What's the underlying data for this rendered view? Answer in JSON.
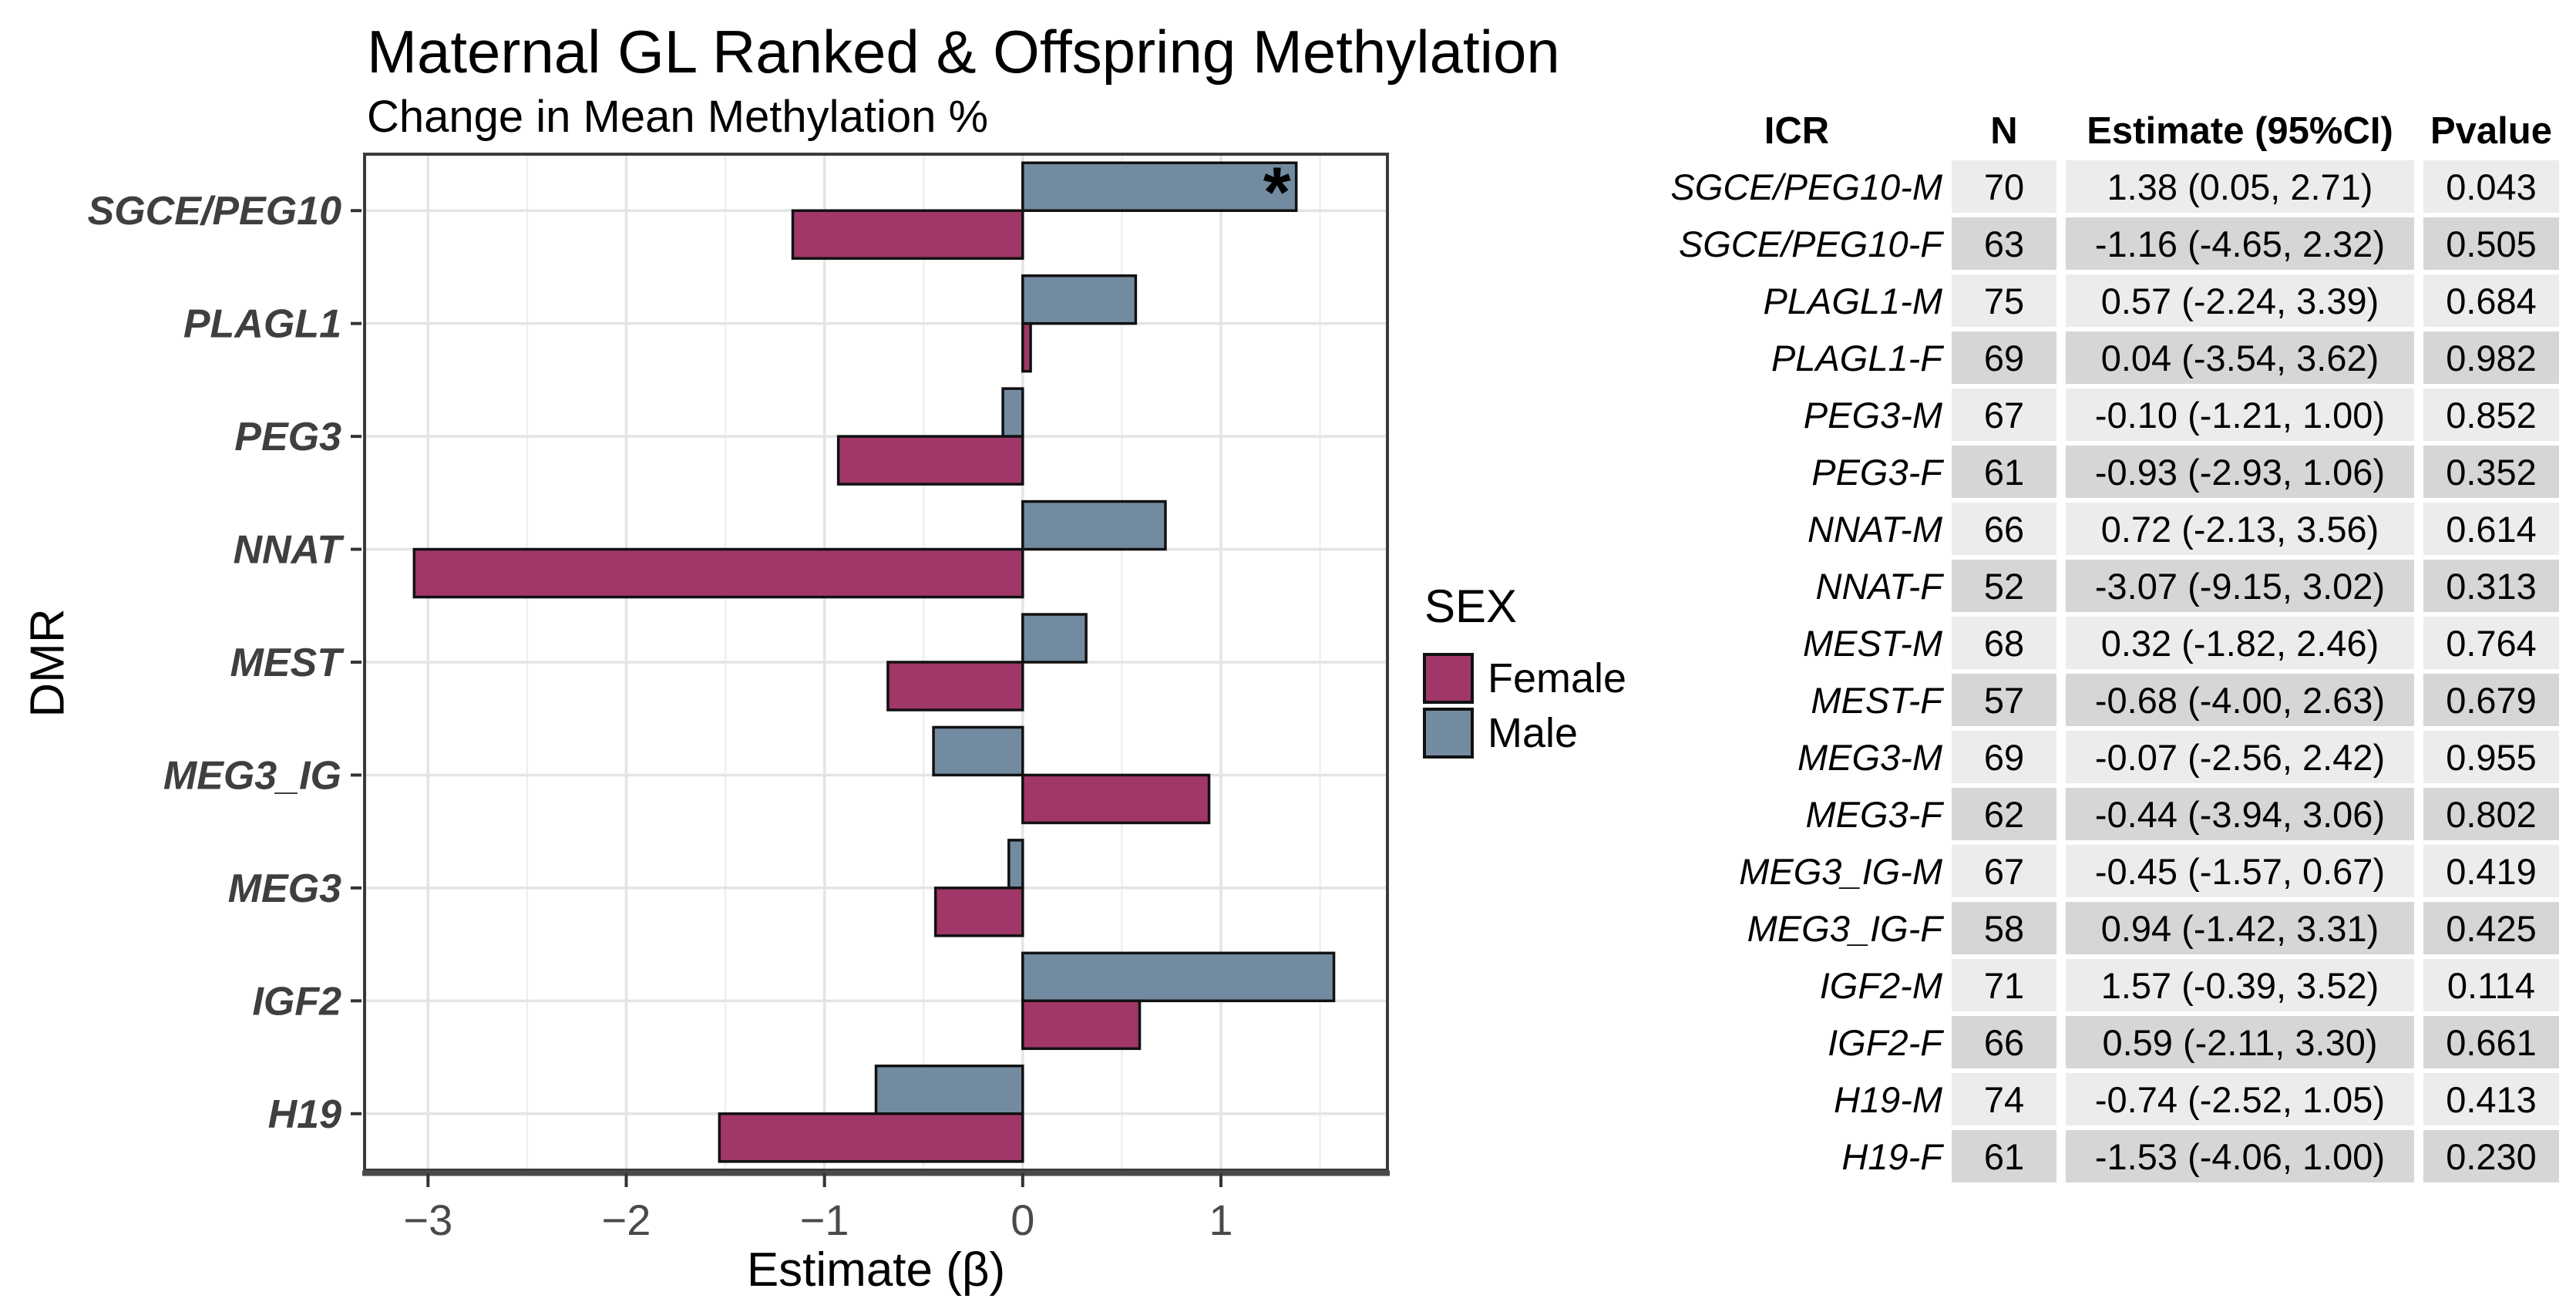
{
  "chart_data": {
    "type": "bar",
    "orientation": "horizontal",
    "title": "Maternal GL Ranked & Offspring Methylation",
    "subtitle": "Change in Mean Methylation %",
    "xlabel": "Estimate (β)",
    "ylabel": "DMR",
    "categories": [
      "SGCE/PEG10",
      "PLAGL1",
      "PEG3",
      "NNAT",
      "MEST",
      "MEG3_IG",
      "MEG3",
      "IGF2",
      "H19"
    ],
    "series": [
      {
        "name": "Male",
        "color": "#738BA1",
        "position": "top",
        "values": [
          1.38,
          0.57,
          -0.1,
          0.72,
          0.32,
          -0.45,
          -0.07,
          1.57,
          -0.74
        ]
      },
      {
        "name": "Female",
        "color": "#A03768",
        "position": "bottom",
        "values": [
          -1.16,
          0.04,
          -0.93,
          -3.07,
          -0.68,
          0.94,
          -0.44,
          0.59,
          -1.53
        ]
      }
    ],
    "xlim": [
      -3.32,
      1.84
    ],
    "xticks": [
      -3,
      -2,
      -1,
      0,
      1
    ],
    "grid": true,
    "legend_position": "right",
    "annotations": [
      {
        "text": "*",
        "category": "SGCE/PEG10",
        "series": "Male"
      }
    ]
  },
  "legend": {
    "title": "SEX",
    "items": [
      {
        "label": "Female",
        "color": "#A03768"
      },
      {
        "label": "Male",
        "color": "#738BA1"
      }
    ]
  },
  "table": {
    "headers": [
      "ICR",
      "N",
      "Estimate (95%CI)",
      "Pvalue"
    ],
    "rows": [
      {
        "icr": "SGCE/PEG10-M",
        "n": "70",
        "estimate": "1.38 (0.05, 2.71)",
        "pvalue": "0.043"
      },
      {
        "icr": "SGCE/PEG10-F",
        "n": "63",
        "estimate": "-1.16 (-4.65, 2.32)",
        "pvalue": "0.505"
      },
      {
        "icr": "PLAGL1-M",
        "n": "75",
        "estimate": "0.57 (-2.24, 3.39)",
        "pvalue": "0.684"
      },
      {
        "icr": "PLAGL1-F",
        "n": "69",
        "estimate": "0.04 (-3.54, 3.62)",
        "pvalue": "0.982"
      },
      {
        "icr": "PEG3-M",
        "n": "67",
        "estimate": "-0.10 (-1.21, 1.00)",
        "pvalue": "0.852"
      },
      {
        "icr": "PEG3-F",
        "n": "61",
        "estimate": "-0.93 (-2.93, 1.06)",
        "pvalue": "0.352"
      },
      {
        "icr": "NNAT-M",
        "n": "66",
        "estimate": "0.72 (-2.13, 3.56)",
        "pvalue": "0.614"
      },
      {
        "icr": "NNAT-F",
        "n": "52",
        "estimate": "-3.07 (-9.15, 3.02)",
        "pvalue": "0.313"
      },
      {
        "icr": "MEST-M",
        "n": "68",
        "estimate": "0.32 (-1.82, 2.46)",
        "pvalue": "0.764"
      },
      {
        "icr": "MEST-F",
        "n": "57",
        "estimate": "-0.68 (-4.00, 2.63)",
        "pvalue": "0.679"
      },
      {
        "icr": "MEG3-M",
        "n": "69",
        "estimate": "-0.07 (-2.56, 2.42)",
        "pvalue": "0.955"
      },
      {
        "icr": "MEG3-F",
        "n": "62",
        "estimate": "-0.44 (-3.94, 3.06)",
        "pvalue": "0.802"
      },
      {
        "icr": "MEG3_IG-M",
        "n": "67",
        "estimate": "-0.45 (-1.57, 0.67)",
        "pvalue": "0.419"
      },
      {
        "icr": "MEG3_IG-F",
        "n": "58",
        "estimate": "0.94 (-1.42, 3.31)",
        "pvalue": "0.425"
      },
      {
        "icr": "IGF2-M",
        "n": "71",
        "estimate": "1.57 (-0.39, 3.52)",
        "pvalue": "0.114"
      },
      {
        "icr": "IGF2-F",
        "n": "66",
        "estimate": "0.59 (-2.11, 3.30)",
        "pvalue": "0.661"
      },
      {
        "icr": "H19-M",
        "n": "74",
        "estimate": "-0.74 (-2.52, 1.05)",
        "pvalue": "0.413"
      },
      {
        "icr": "H19-F",
        "n": "61",
        "estimate": "-1.53 (-4.06, 1.00)",
        "pvalue": "0.230"
      }
    ]
  },
  "colors": {
    "female": "#A03768",
    "male": "#738BA1",
    "bar_outline": "#111111",
    "panel_border": "#3a3a3a",
    "axis_line": "#4a4a4a",
    "grid_major": "#e4e4e4",
    "grid_minor": "#efefef",
    "tick_text": "#4a4a4a",
    "category_text": "#3f3f3f",
    "row_shade_male": "#ececec",
    "row_shade_female": "#d6d6d6"
  }
}
